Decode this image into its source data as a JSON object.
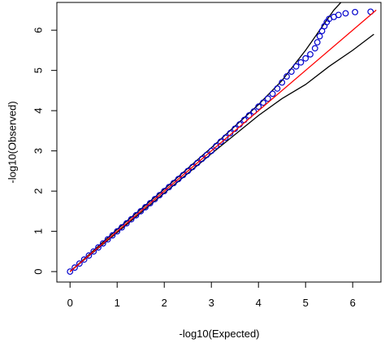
{
  "chart_data": {
    "type": "scatter",
    "xlabel": "-log10(Expected)",
    "ylabel": "-log10(Observed)",
    "xlim": [
      -0.28,
      6.6
    ],
    "ylim": [
      -0.26,
      6.69
    ],
    "xticks": [
      0,
      1,
      2,
      3,
      4,
      5,
      6
    ],
    "yticks": [
      0,
      1,
      2,
      3,
      4,
      5,
      6
    ],
    "series": [
      {
        "type": "line",
        "color": "#000000",
        "x": [
          0,
          1,
          2,
          3,
          4,
          4.5,
          5,
          5.3,
          5.6,
          5.75
        ],
        "values": [
          0,
          1.05,
          2.05,
          3.08,
          4.15,
          4.75,
          5.5,
          6.0,
          6.5,
          6.69
        ]
      },
      {
        "type": "line",
        "color": "#000000",
        "x": [
          0,
          1,
          2,
          3,
          4,
          4.5,
          5,
          5.5,
          6,
          6.45
        ],
        "values": [
          0,
          0.97,
          1.95,
          2.93,
          3.88,
          4.3,
          4.65,
          5.1,
          5.5,
          5.9
        ]
      },
      {
        "type": "points",
        "color": "#0000cc",
        "x": [
          0,
          0.1,
          0.2,
          0.3,
          0.4,
          0.5,
          0.6,
          0.7,
          0.8,
          0.9,
          1,
          1.1,
          1.2,
          1.3,
          1.4,
          1.5,
          1.6,
          1.7,
          1.8,
          1.9,
          2,
          2.1,
          2.2,
          2.3,
          2.4,
          2.5,
          2.6,
          2.7,
          2.8,
          2.9,
          3,
          3.1,
          3.2,
          3.3,
          3.4,
          3.5,
          3.6,
          3.7,
          3.8,
          3.9,
          4,
          4.1,
          4.2,
          4.3,
          4.4,
          4.5,
          4.6,
          4.7,
          4.8,
          4.9,
          5,
          5.1,
          5.2,
          5.25,
          5.3,
          5.35,
          5.4,
          5.45,
          5.5,
          5.6,
          5.7,
          5.85,
          6.05,
          6.38
        ],
        "values": [
          0,
          0.1,
          0.2,
          0.3,
          0.4,
          0.5,
          0.6,
          0.7,
          0.8,
          0.9,
          1,
          1.1,
          1.2,
          1.3,
          1.4,
          1.5,
          1.6,
          1.7,
          1.8,
          1.9,
          2,
          2.1,
          2.2,
          2.3,
          2.4,
          2.5,
          2.6,
          2.7,
          2.8,
          2.9,
          3,
          3.12,
          3.23,
          3.33,
          3.44,
          3.55,
          3.66,
          3.77,
          3.88,
          3.98,
          4.1,
          4.2,
          4.3,
          4.42,
          4.55,
          4.7,
          4.85,
          4.97,
          5.1,
          5.2,
          5.3,
          5.4,
          5.55,
          5.7,
          5.85,
          5.98,
          6.1,
          6.2,
          6.28,
          6.33,
          6.38,
          6.42,
          6.45,
          6.46
        ]
      },
      {
        "type": "line",
        "color": "#ff0000",
        "x": [
          0,
          6.5
        ],
        "values": [
          0,
          6.5
        ]
      }
    ]
  }
}
